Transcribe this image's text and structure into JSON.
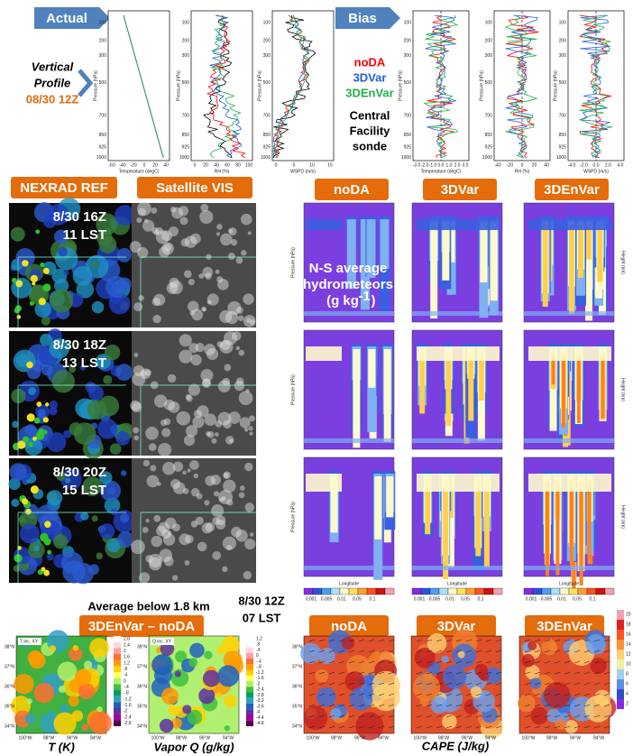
{
  "top": {
    "actual": "Actual",
    "bias": "Bias",
    "profile": [
      "Vertical",
      "Profile"
    ],
    "time": "08/30 12Z",
    "legend": [
      {
        "name": "noDA",
        "color": "#ff0000"
      },
      {
        "name": "3DVar",
        "color": "#1f5fd6"
      },
      {
        "name": "3DEnVar",
        "color": "#22b14c"
      },
      {
        "name": "Central",
        "color": "#000000"
      },
      {
        "name": "Facility",
        "color": "#000000"
      },
      {
        "name": "sonde",
        "color": "#000000"
      }
    ],
    "pressure_label": "Pressure (hPa)",
    "pressure_ticks": [
      "100",
      "200",
      "300",
      "500",
      "700",
      "850",
      "925",
      "1000"
    ],
    "actual_plots": [
      {
        "xlabel": "Temperature (degC)",
        "xticks": [
          "-60",
          "-40",
          "-20",
          "0",
          "20",
          "40"
        ]
      },
      {
        "xlabel": "RH (%)",
        "xticks": [
          "0",
          "20",
          "40",
          "60",
          "80",
          "100"
        ]
      },
      {
        "xlabel": "WSPD (m/s)",
        "xticks": [
          "0",
          "5",
          "10",
          "15"
        ]
      }
    ],
    "bias_plots": [
      {
        "xlabel": "Temperature (degC)",
        "xticks": [
          "-3.0",
          "-2.0",
          "-1.0",
          "0.0",
          "1.0",
          "2.0",
          "3.0"
        ]
      },
      {
        "xlabel": "RH (%)",
        "xticks": [
          "-40",
          "-20",
          "0",
          "20",
          "40"
        ]
      },
      {
        "xlabel": "WSPD (m/s)",
        "xticks": [
          "-4.0",
          "-2.0",
          "0.0",
          "2.0",
          "4.0"
        ]
      }
    ]
  },
  "obs": {
    "radar": "NEXRAD REF",
    "satellite": "Satellite VIS",
    "times": [
      [
        "8/30 16Z",
        "11 LST"
      ],
      [
        "8/30 18Z",
        "13 LST"
      ],
      [
        "8/30 20Z",
        "15 LST"
      ]
    ]
  },
  "cross": {
    "experiments": [
      "noDA",
      "3DVar",
      "3DEnVar"
    ],
    "note": [
      "N-S average",
      "hydrometeors",
      "(g kg",
      "-1",
      ")"
    ],
    "ylabel": "Pressure (hPa)",
    "y2label": "Height (km)",
    "xlabel": "Longitude",
    "colorbar_ticks": [
      "0.001",
      "0.005",
      "0.01",
      "0.05",
      "0.1"
    ]
  },
  "bottom": {
    "average": "Average below 1.8 km",
    "time": [
      "8/30 12Z",
      "07 LST"
    ],
    "diff": "3DEnVar – noDA",
    "t_label": "T inc. XY",
    "q_label": "Q inc. XY",
    "t_caption": "T (K)",
    "q_caption": "Vapor Q (g/kg)",
    "t_ticks": [
      "2.8",
      "2.4",
      "2",
      "1.6",
      "1.2",
      ".8",
      ".4",
      "0",
      "-.4",
      "-.8",
      "-1.2",
      "-1.6",
      "-2",
      "-2.4",
      "-2.8"
    ],
    "q_ticks": [
      "1.2",
      ".8",
      ".4",
      "0",
      "-.4",
      "-.8",
      "-1.2",
      "-1.6",
      "-2",
      "-2.4",
      "-2.8",
      "-3.2",
      "-3.6",
      "-4",
      "-4.4",
      "-4.8"
    ],
    "lon_ticks": [
      "100°W",
      "98°W",
      "96°W",
      "94°W"
    ],
    "lat_ticks": [
      "38°N",
      "37°N",
      "36°N",
      "35°N",
      "34°N"
    ],
    "cape_experiments": [
      "noDA",
      "3DVar",
      "3DEnVar"
    ],
    "cape_ticks": [
      "20",
      "18",
      "16",
      "14",
      "12",
      "10",
      "8",
      "6",
      "4",
      "2"
    ],
    "cape_caption": "CAPE (J/kg)"
  }
}
